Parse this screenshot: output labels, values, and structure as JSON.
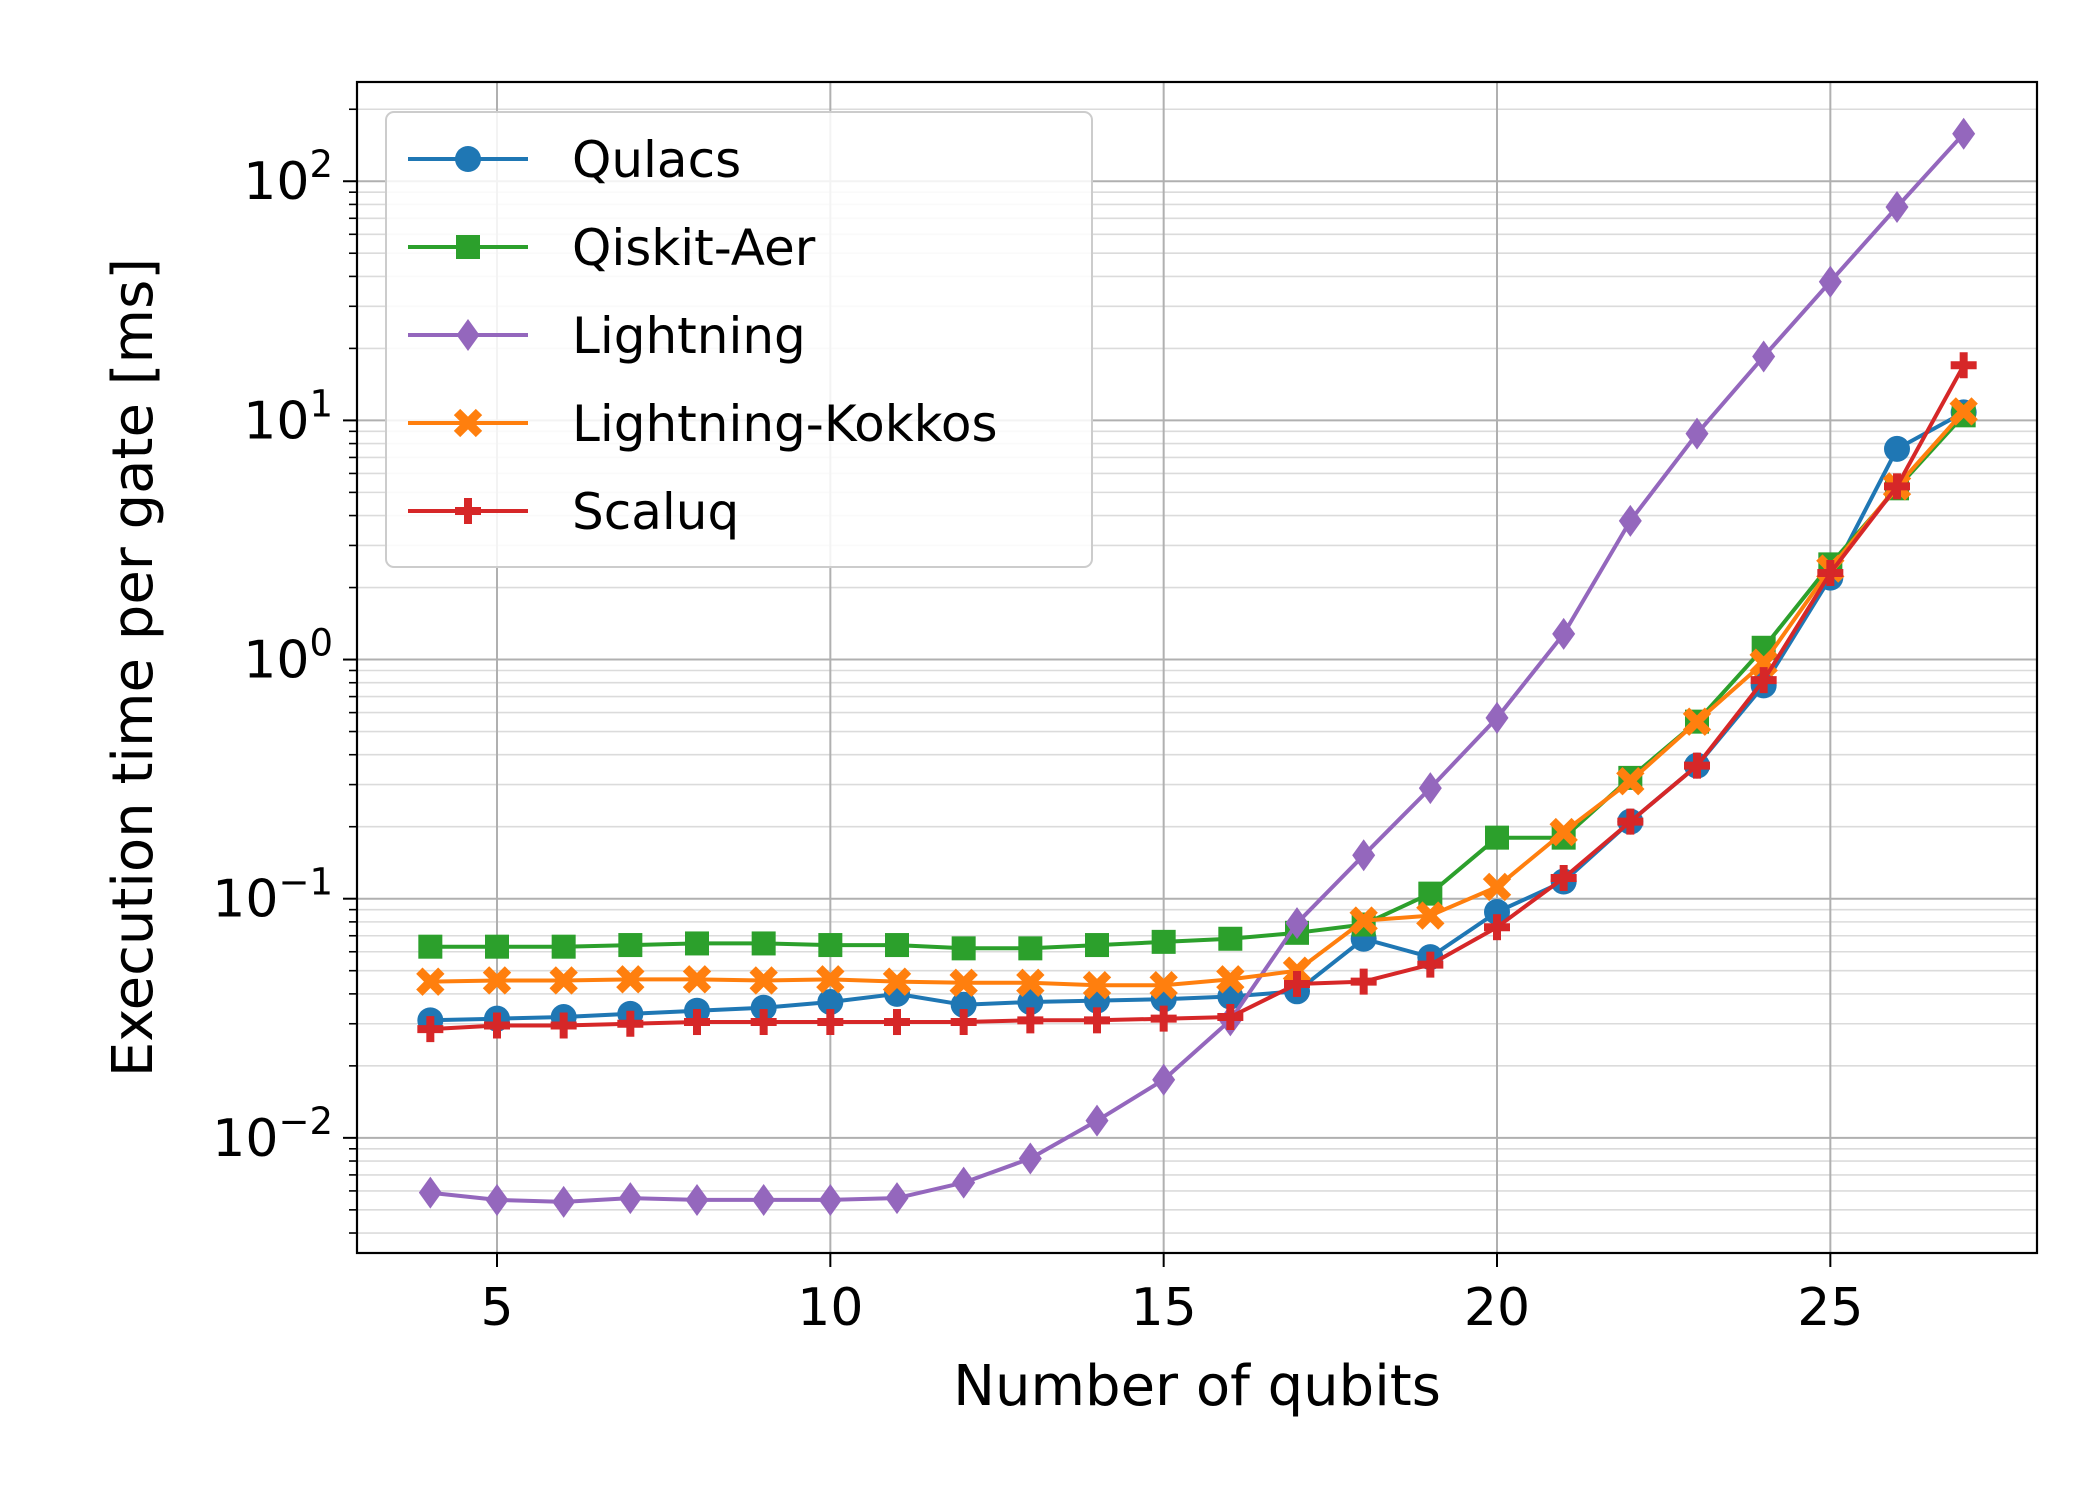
{
  "chart_data": {
    "type": "line",
    "xlabel": "Number of qubits",
    "ylabel": "Execution time per gate [ms]",
    "y_scale": "log",
    "xlim": [
      2.9,
      28.1
    ],
    "ylim": [
      0.0033,
      260
    ],
    "x_ticks": [
      {
        "value": 5,
        "label": "5"
      },
      {
        "value": 10,
        "label": "10"
      },
      {
        "value": 15,
        "label": "15"
      },
      {
        "value": 20,
        "label": "20"
      },
      {
        "value": 25,
        "label": "25"
      }
    ],
    "y_ticks": [
      {
        "value": 0.01,
        "base": "10",
        "exp": "−2"
      },
      {
        "value": 0.1,
        "base": "10",
        "exp": "−1"
      },
      {
        "value": 1,
        "base": "10",
        "exp": "0"
      },
      {
        "value": 10,
        "base": "10",
        "exp": "1"
      },
      {
        "value": 100,
        "base": "10",
        "exp": "2"
      }
    ],
    "grid": true,
    "legend_position": "top-left",
    "x": [
      4,
      5,
      6,
      7,
      8,
      9,
      10,
      11,
      12,
      13,
      14,
      15,
      16,
      17,
      18,
      19,
      20,
      21,
      22,
      23,
      24,
      25,
      26,
      27
    ],
    "series": [
      {
        "name": "Qulacs",
        "color": "#1f77b4",
        "marker": "circle",
        "values": [
          0.031,
          0.0315,
          0.032,
          0.033,
          0.034,
          0.035,
          0.037,
          0.04,
          0.036,
          0.037,
          0.0375,
          0.038,
          0.039,
          0.041,
          0.068,
          0.057,
          0.088,
          0.118,
          0.21,
          0.36,
          0.78,
          2.2,
          7.6,
          10.8
        ]
      },
      {
        "name": "Qiskit-Aer",
        "color": "#2ca02c",
        "marker": "square",
        "values": [
          0.063,
          0.063,
          0.063,
          0.064,
          0.065,
          0.065,
          0.064,
          0.064,
          0.062,
          0.062,
          0.064,
          0.066,
          0.068,
          0.072,
          0.078,
          0.105,
          0.18,
          0.18,
          0.32,
          0.55,
          1.12,
          2.5,
          5.2,
          10.5
        ]
      },
      {
        "name": "Lightning",
        "color": "#9467bd",
        "marker": "diamond",
        "values": [
          0.0059,
          0.0055,
          0.0054,
          0.0056,
          0.0055,
          0.0055,
          0.0055,
          0.0056,
          0.0065,
          0.0082,
          0.0118,
          0.0175,
          0.031,
          0.079,
          0.152,
          0.29,
          0.57,
          1.28,
          3.8,
          8.8,
          18.5,
          38,
          78,
          158
        ]
      },
      {
        "name": "Lightning-Kokkos",
        "color": "#ff7f0e",
        "marker": "x",
        "values": [
          0.045,
          0.0455,
          0.0455,
          0.046,
          0.046,
          0.0455,
          0.046,
          0.045,
          0.0445,
          0.0445,
          0.0435,
          0.0435,
          0.046,
          0.05,
          0.081,
          0.085,
          0.112,
          0.19,
          0.31,
          0.55,
          0.97,
          2.4,
          5.3,
          10.9
        ]
      },
      {
        "name": "Scaluq",
        "color": "#d62728",
        "marker": "plus",
        "values": [
          0.0285,
          0.0295,
          0.0295,
          0.03,
          0.0305,
          0.0305,
          0.0305,
          0.0305,
          0.0305,
          0.031,
          0.031,
          0.0315,
          0.032,
          0.044,
          0.045,
          0.053,
          0.076,
          0.122,
          0.21,
          0.36,
          0.82,
          2.3,
          5.3,
          17
        ]
      }
    ]
  }
}
